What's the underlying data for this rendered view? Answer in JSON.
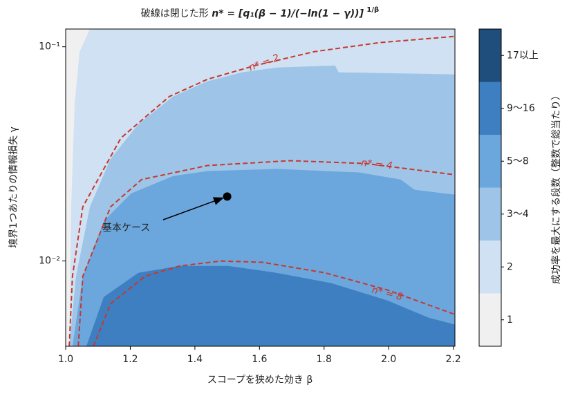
{
  "chart_data": {
    "type": "contour",
    "title": "破線は閉じた形",
    "title_formula": "n* = [q₁(β − 1)/(−ln(1 − γ))]",
    "title_exponent": "1/β",
    "x_label": "スコープを狭めた効き β",
    "y_label": "境界1つあたりの情報損失 γ",
    "colorbar_label": "成功率を最大にする段数（整数で総当たり）",
    "xlim": [
      1.0,
      2.205
    ],
    "ylim": [
      0.004,
      0.121
    ],
    "y_log": true,
    "xticks": [
      {
        "value": 1,
        "label": "1.0"
      },
      1.2,
      1.4,
      1.6,
      1.8,
      {
        "value": 2,
        "label": "2.0"
      },
      2.2
    ],
    "yticks": [
      {
        "value": 0.01,
        "label": "10⁻²"
      },
      {
        "value": 0.1,
        "label": "10⁻¹"
      }
    ],
    "classes": [
      {
        "label": "1",
        "color": "#f0f0f0"
      },
      {
        "label": "2",
        "color": "#cfe1f2"
      },
      {
        "label": "3〜4",
        "color": "#9ec5e8"
      },
      {
        "label": "5〜8",
        "color": "#6ba7dc"
      },
      {
        "label": "9〜16",
        "color": "#3d7fc0"
      },
      {
        "label": "17以上",
        "color": "#1f4e7d"
      }
    ],
    "boundaries": [
      {
        "x": [
          1.011,
          1.017,
          1.028,
          1.043,
          1.075,
          2.205
        ],
        "y": [
          0.004,
          0.0179,
          0.0544,
          0.0949,
          0.121,
          0.121
        ]
      },
      {
        "x": [
          1.011,
          1.032,
          1.075,
          1.139,
          1.225,
          1.332,
          1.439,
          1.546,
          1.653,
          1.834,
          1.845,
          2.205
        ],
        "y": [
          0.004,
          0.00849,
          0.0179,
          0.03,
          0.0435,
          0.0586,
          0.069,
          0.076,
          0.08,
          0.0818,
          0.076,
          0.0743
        ]
      },
      {
        "x": [
          1.021,
          1.053,
          1.118,
          1.203,
          1.332,
          1.439,
          1.653,
          1.909,
          2.037,
          2.08,
          2.205
        ],
        "y": [
          0.004,
          0.00849,
          0.01538,
          0.0207,
          0.0249,
          0.0263,
          0.0269,
          0.0259,
          0.024,
          0.0215,
          0.0204
        ]
      },
      {
        "x": [
          1.064,
          1.118,
          1.225,
          1.353,
          1.503,
          1.652,
          1.823,
          1.995,
          2.123,
          2.205
        ],
        "y": [
          0.004,
          0.0068,
          0.00881,
          0.00949,
          0.00949,
          0.00881,
          0.00788,
          0.00655,
          0.00544,
          0.00505
        ]
      }
    ],
    "contour_color": "#c8372d",
    "contours": [
      {
        "level": 2,
        "label": "n* = 2",
        "x": [
          1.011,
          1.021,
          1.053,
          1.171,
          1.321,
          1.439,
          1.588,
          1.77,
          1.973,
          2.202
        ],
        "y": [
          0.004,
          0.00849,
          0.0179,
          0.0375,
          0.0586,
          0.0705,
          0.0818,
          0.0949,
          0.1046,
          0.1117
        ]
      },
      {
        "level": 4,
        "label": "n* = 4",
        "x": [
          1.039,
          1.053,
          1.139,
          1.235,
          1.439,
          1.695,
          1.93,
          2.202
        ],
        "y": [
          0.004,
          0.00849,
          0.0179,
          0.024,
          0.0279,
          0.0294,
          0.0285,
          0.0253
        ]
      },
      {
        "level": 8,
        "label": "n* = 8",
        "x": [
          1.086,
          1.139,
          1.246,
          1.353,
          1.481,
          1.61,
          1.802,
          1.995,
          2.202
        ],
        "y": [
          0.004,
          0.00631,
          0.00849,
          0.00948,
          0.01,
          0.00986,
          0.00881,
          0.00733,
          0.00565
        ]
      }
    ],
    "annotation": {
      "text": "基本ケース",
      "x": 1.5,
      "y": 0.02
    }
  }
}
